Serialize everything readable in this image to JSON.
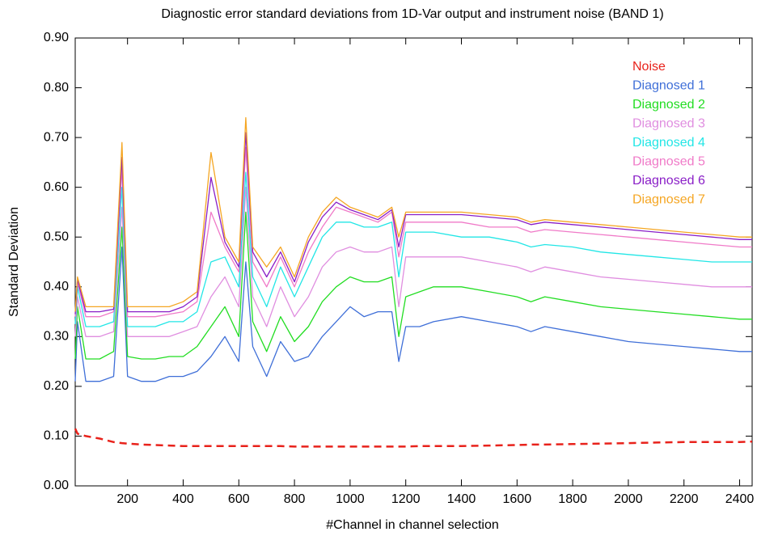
{
  "chart_data": {
    "type": "line",
    "title": "Diagnostic error standard deviations from 1D-Var output and instrument noise (BAND 1)",
    "x_label": "#Channel in channel selection",
    "y_label": "Standard Deviation",
    "x": [
      12,
      20,
      50,
      100,
      150,
      180,
      200,
      250,
      300,
      350,
      400,
      450,
      500,
      550,
      600,
      625,
      650,
      700,
      750,
      800,
      850,
      900,
      950,
      1000,
      1050,
      1100,
      1150,
      1175,
      1200,
      1250,
      1300,
      1400,
      1500,
      1600,
      1650,
      1700,
      1800,
      1900,
      2000,
      2100,
      2200,
      2300,
      2400,
      2445
    ],
    "xlim": [
      12,
      2445
    ],
    "xticks": [
      200,
      400,
      600,
      800,
      1000,
      1200,
      1400,
      1600,
      1800,
      2000,
      2200,
      2400
    ],
    "ylim": [
      0,
      0.9
    ],
    "yticks": [
      {
        "value": 0,
        "label": "0.00"
      },
      {
        "value": 0.1,
        "label": "0.10"
      },
      {
        "value": 0.2,
        "label": "0.20"
      },
      {
        "value": 0.3,
        "label": "0.30"
      },
      {
        "value": 0.4,
        "label": "0.40"
      },
      {
        "value": 0.5,
        "label": "0.50"
      },
      {
        "value": 0.6,
        "label": "0.60"
      },
      {
        "value": 0.7,
        "label": "0.70"
      },
      {
        "value": 0.8,
        "label": "0.80"
      },
      {
        "value": 0.9,
        "label": "0.90"
      }
    ],
    "legend": "upper right",
    "series": [
      {
        "name": "Noise",
        "color": "#e8221b",
        "dashed": true,
        "values": [
          0.115,
          0.105,
          0.1,
          0.095,
          0.088,
          0.086,
          0.085,
          0.083,
          0.082,
          0.081,
          0.08,
          0.08,
          0.08,
          0.08,
          0.08,
          0.08,
          0.08,
          0.08,
          0.08,
          0.079,
          0.079,
          0.079,
          0.079,
          0.079,
          0.079,
          0.079,
          0.079,
          0.079,
          0.079,
          0.08,
          0.08,
          0.08,
          0.081,
          0.082,
          0.083,
          0.083,
          0.084,
          0.085,
          0.086,
          0.087,
          0.088,
          0.088,
          0.088,
          0.089
        ]
      },
      {
        "name": "Diagnosed 1",
        "color": "#3f6fd8",
        "values": [
          0.21,
          0.33,
          0.21,
          0.21,
          0.22,
          0.48,
          0.22,
          0.21,
          0.21,
          0.22,
          0.22,
          0.23,
          0.26,
          0.3,
          0.25,
          0.45,
          0.28,
          0.22,
          0.29,
          0.25,
          0.26,
          0.3,
          0.33,
          0.36,
          0.34,
          0.35,
          0.35,
          0.25,
          0.32,
          0.32,
          0.33,
          0.34,
          0.33,
          0.32,
          0.31,
          0.32,
          0.31,
          0.3,
          0.29,
          0.285,
          0.28,
          0.275,
          0.27,
          0.27
        ]
      },
      {
        "name": "Diagnosed 2",
        "color": "#22dd22",
        "values": [
          0.255,
          0.36,
          0.255,
          0.255,
          0.27,
          0.52,
          0.26,
          0.255,
          0.255,
          0.26,
          0.26,
          0.28,
          0.32,
          0.36,
          0.3,
          0.55,
          0.33,
          0.27,
          0.34,
          0.29,
          0.32,
          0.37,
          0.4,
          0.42,
          0.41,
          0.41,
          0.42,
          0.3,
          0.38,
          0.39,
          0.4,
          0.4,
          0.39,
          0.38,
          0.37,
          0.38,
          0.37,
          0.36,
          0.355,
          0.35,
          0.345,
          0.34,
          0.335,
          0.335
        ]
      },
      {
        "name": "Diagnosed  3",
        "color": "#e08ee0",
        "values": [
          0.3,
          0.38,
          0.3,
          0.3,
          0.31,
          0.56,
          0.3,
          0.3,
          0.3,
          0.3,
          0.31,
          0.32,
          0.38,
          0.42,
          0.36,
          0.6,
          0.38,
          0.32,
          0.4,
          0.34,
          0.38,
          0.44,
          0.47,
          0.48,
          0.47,
          0.47,
          0.48,
          0.36,
          0.46,
          0.46,
          0.46,
          0.46,
          0.45,
          0.44,
          0.43,
          0.44,
          0.43,
          0.42,
          0.415,
          0.41,
          0.405,
          0.4,
          0.4,
          0.4
        ]
      },
      {
        "name": "Diagnosed 4",
        "color": "#22e6e6",
        "values": [
          0.325,
          0.4,
          0.32,
          0.32,
          0.33,
          0.6,
          0.32,
          0.32,
          0.32,
          0.33,
          0.33,
          0.35,
          0.45,
          0.46,
          0.4,
          0.63,
          0.42,
          0.36,
          0.44,
          0.38,
          0.44,
          0.5,
          0.53,
          0.53,
          0.52,
          0.52,
          0.53,
          0.42,
          0.51,
          0.51,
          0.51,
          0.5,
          0.5,
          0.49,
          0.48,
          0.485,
          0.48,
          0.47,
          0.465,
          0.46,
          0.455,
          0.45,
          0.45,
          0.45
        ]
      },
      {
        "name": "Diagnosed 5",
        "color": "#f07ac8",
        "values": [
          0.34,
          0.41,
          0.34,
          0.34,
          0.35,
          0.64,
          0.34,
          0.34,
          0.34,
          0.345,
          0.35,
          0.37,
          0.55,
          0.48,
          0.43,
          0.68,
          0.45,
          0.4,
          0.46,
          0.4,
          0.47,
          0.52,
          0.56,
          0.55,
          0.54,
          0.53,
          0.55,
          0.46,
          0.53,
          0.53,
          0.53,
          0.53,
          0.52,
          0.52,
          0.51,
          0.515,
          0.51,
          0.505,
          0.5,
          0.495,
          0.49,
          0.485,
          0.48,
          0.48
        ]
      },
      {
        "name": "Diagnosed 6",
        "color": "#8a1fc7",
        "values": [
          0.345,
          0.415,
          0.35,
          0.35,
          0.355,
          0.66,
          0.35,
          0.35,
          0.35,
          0.35,
          0.36,
          0.38,
          0.62,
          0.49,
          0.44,
          0.71,
          0.47,
          0.42,
          0.47,
          0.41,
          0.49,
          0.54,
          0.57,
          0.555,
          0.545,
          0.535,
          0.555,
          0.48,
          0.545,
          0.545,
          0.545,
          0.545,
          0.54,
          0.535,
          0.525,
          0.53,
          0.525,
          0.52,
          0.515,
          0.51,
          0.505,
          0.5,
          0.495,
          0.495
        ]
      },
      {
        "name": "Diagnosed 7",
        "color": "#f5a623",
        "values": [
          0.35,
          0.42,
          0.36,
          0.36,
          0.36,
          0.69,
          0.36,
          0.36,
          0.36,
          0.36,
          0.37,
          0.39,
          0.67,
          0.5,
          0.45,
          0.74,
          0.48,
          0.44,
          0.48,
          0.42,
          0.5,
          0.55,
          0.58,
          0.56,
          0.55,
          0.54,
          0.56,
          0.5,
          0.55,
          0.55,
          0.55,
          0.55,
          0.545,
          0.54,
          0.53,
          0.535,
          0.53,
          0.525,
          0.52,
          0.515,
          0.51,
          0.505,
          0.5,
          0.5
        ]
      }
    ]
  }
}
